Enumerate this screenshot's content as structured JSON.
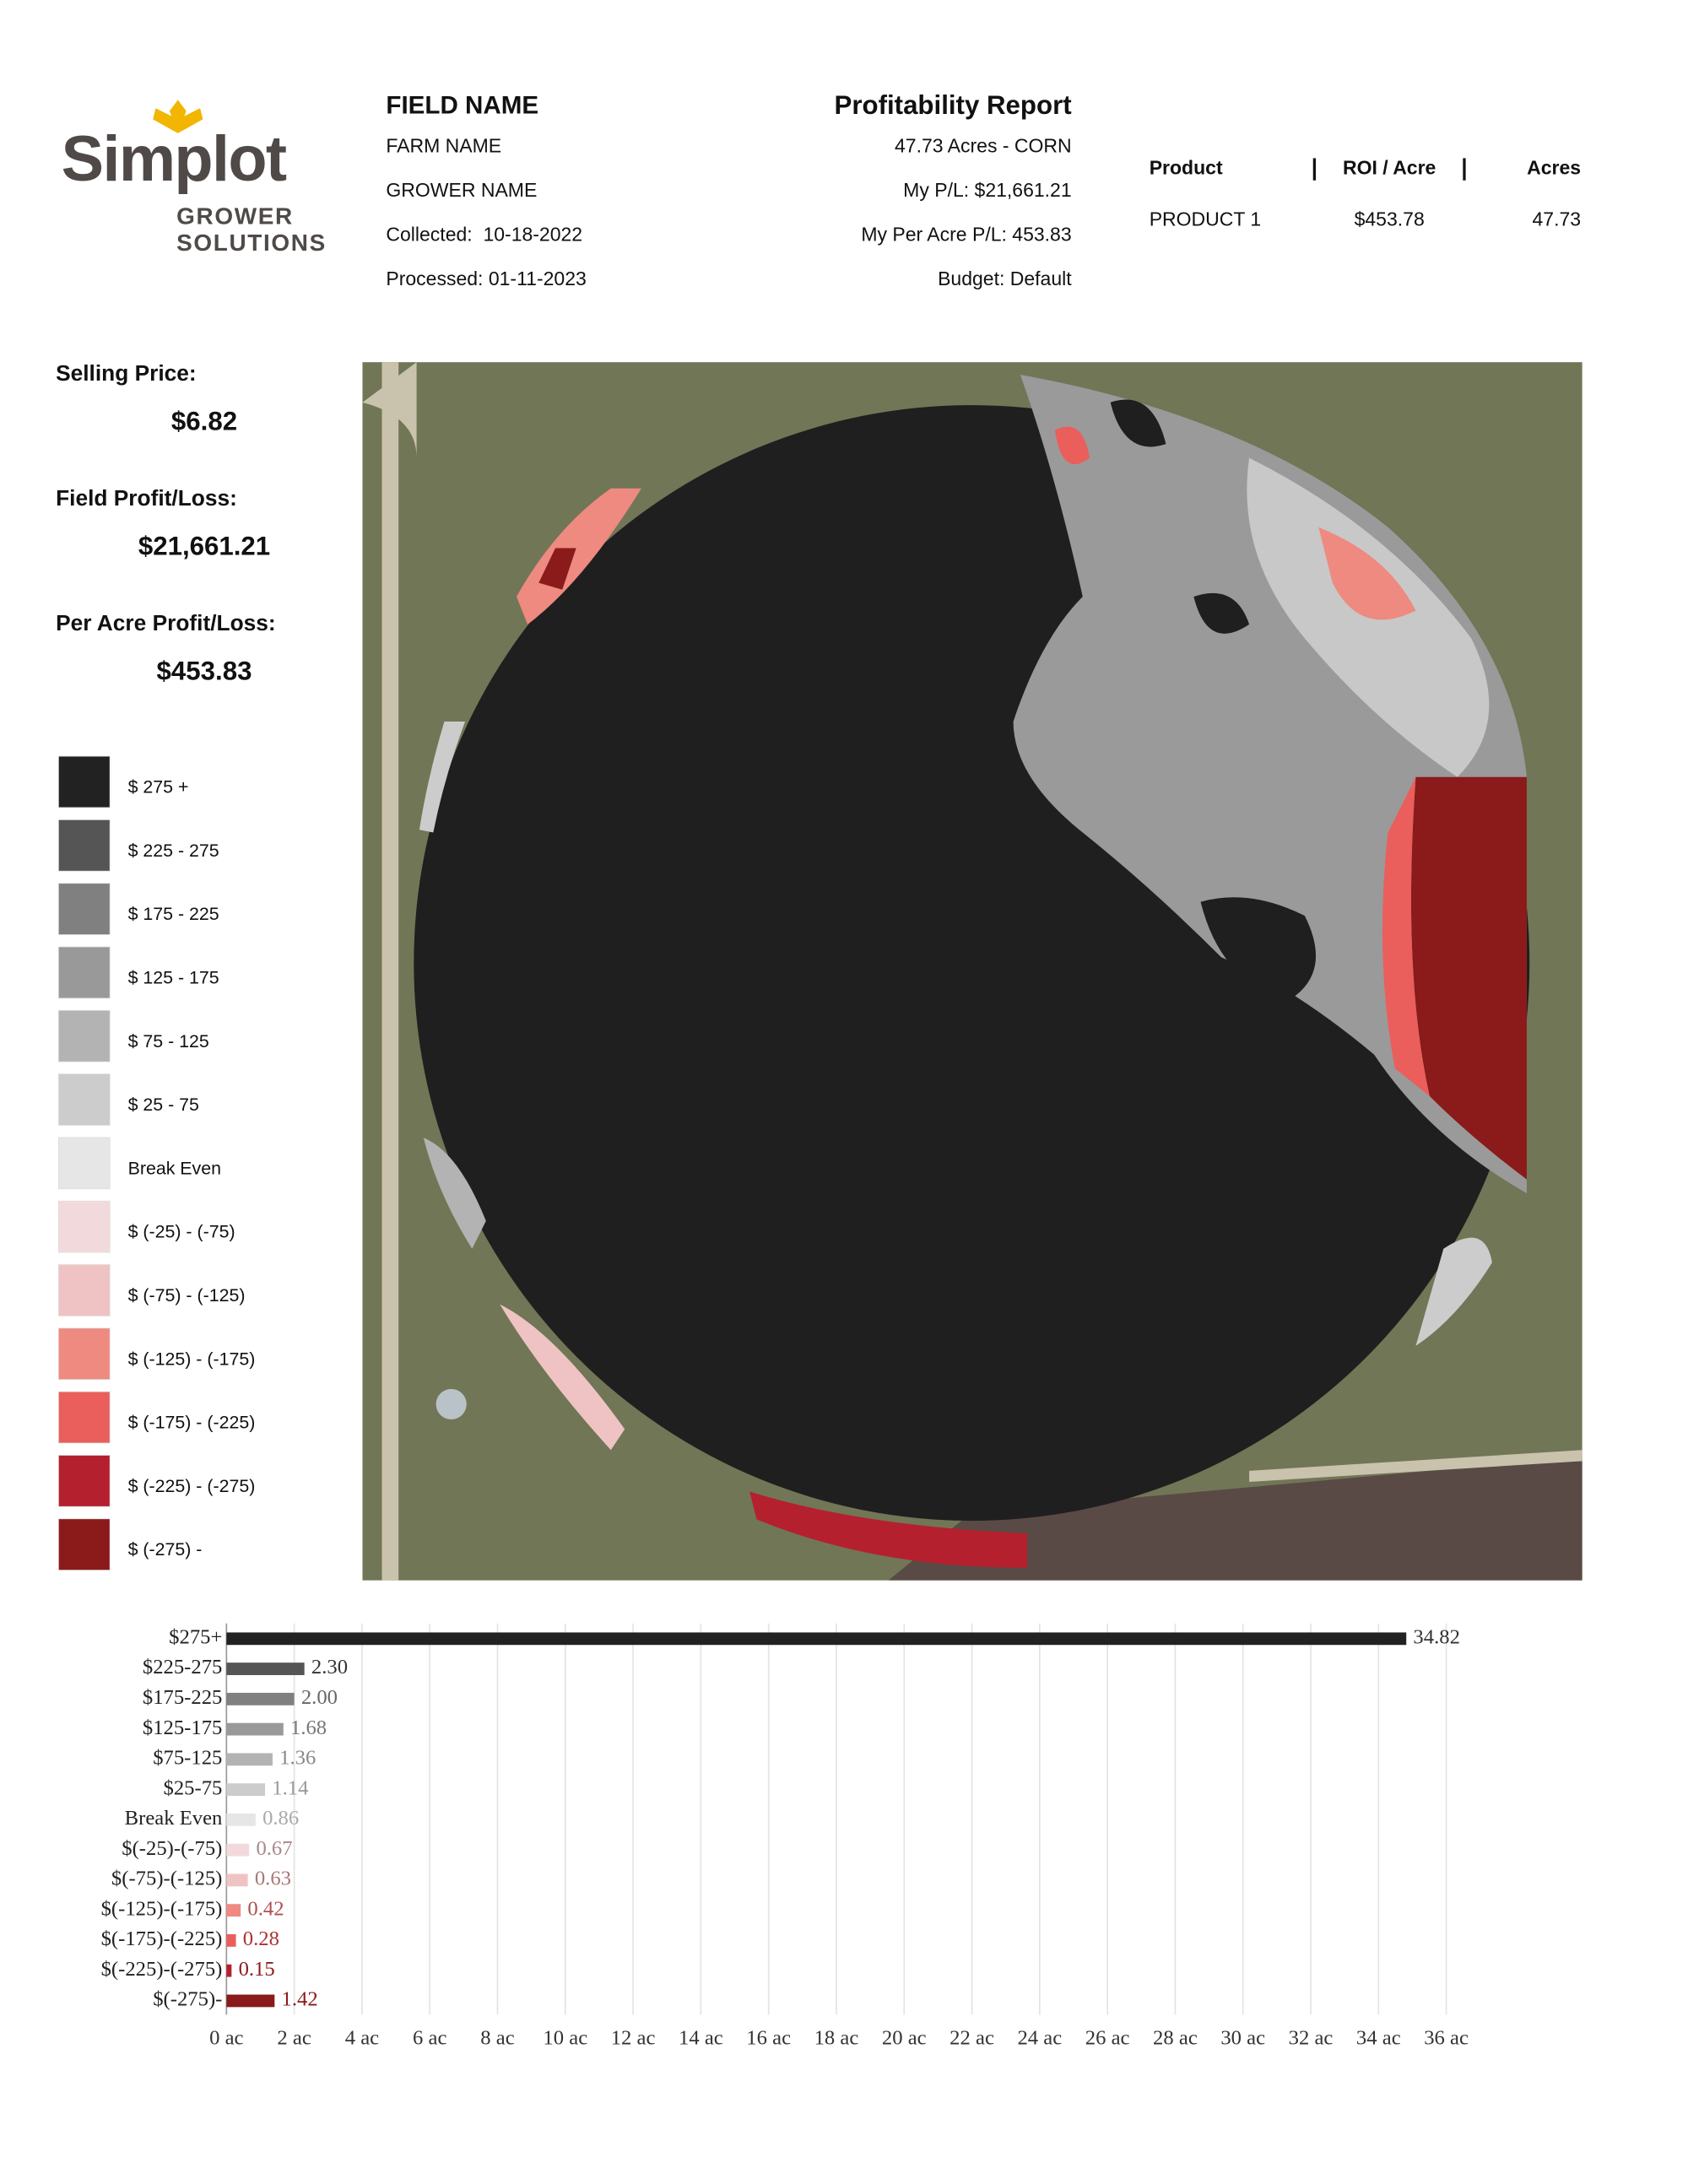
{
  "logo": {
    "brand": "Simplot",
    "tagline_1": "GROWER",
    "tagline_2": "SOLUTIONS"
  },
  "header": {
    "field_name": "FIELD NAME",
    "farm_name": "FARM NAME",
    "grower_name": "GROWER NAME",
    "collected": "Collected:  10-18-2022",
    "processed": "Processed: 01-11-2023",
    "report_title": "Profitability Report",
    "acres_crop": "47.73 Acres - CORN",
    "my_pl": "My P/L: $21,661.21",
    "my_per_acre_pl": "My Per Acre P/L: 453.83",
    "budget": "Budget: Default"
  },
  "product_table": {
    "columns": [
      "Product",
      "ROI / Acre",
      "Acres"
    ],
    "rows": [
      [
        "PRODUCT 1",
        "$453.78",
        "47.73"
      ]
    ]
  },
  "summary": [
    {
      "label": "Selling Price:",
      "value": "$6.82"
    },
    {
      "label": "Field Profit/Loss:",
      "value": "$21,661.21"
    },
    {
      "label": "Per Acre Profit/Loss:",
      "value": "$453.83"
    }
  ],
  "legend": [
    {
      "label": "$ 275 +",
      "color": "#222222"
    },
    {
      "label": "$ 225 - 275",
      "color": "#555555"
    },
    {
      "label": "$ 175 - 225",
      "color": "#808080"
    },
    {
      "label": "$ 125 - 175",
      "color": "#999999"
    },
    {
      "label": "$ 75 - 125",
      "color": "#b3b3b3"
    },
    {
      "label": "$ 25 - 75",
      "color": "#cccccc"
    },
    {
      "label": "Break Even",
      "color": "#e6e6e6"
    },
    {
      "label": "$ (-25) - (-75)",
      "color": "#f2dadc"
    },
    {
      "label": "$ (-75) - (-125)",
      "color": "#efc3c3"
    },
    {
      "label": "$ (-125) - (-175)",
      "color": "#ee8a80"
    },
    {
      "label": "$ (-175) - (-225)",
      "color": "#ea5e5c"
    },
    {
      "label": "$ (-225) - (-275)",
      "color": "#b5202e"
    },
    {
      "label": "$ (-275) -",
      "color": "#8b1a1a"
    }
  ],
  "chart_data": {
    "type": "hbar",
    "categories": [
      "$275+",
      "$225-275",
      "$175-225",
      "$125-175",
      "$75-125",
      "$25-75",
      "Break Even",
      "$(-25)-(-75)",
      "$(-75)-(-125)",
      "$(-125)-(-175)",
      "$(-175)-(-225)",
      "$(-225)-(-275)",
      "$(-275)-"
    ],
    "values": [
      34.82,
      2.3,
      2.0,
      1.68,
      1.36,
      1.14,
      0.86,
      0.67,
      0.63,
      0.42,
      0.28,
      0.15,
      1.42
    ],
    "value_labels": [
      "34.82",
      "2.30",
      "2.00",
      "1.68",
      "1.36",
      "1.14",
      "0.86",
      "0.67",
      "0.63",
      "0.42",
      "0.28",
      "0.15",
      "1.42"
    ],
    "colors": [
      "#222222",
      "#555555",
      "#808080",
      "#999999",
      "#b3b3b3",
      "#cccccc",
      "#e6e6e6",
      "#f2dadc",
      "#efc3c3",
      "#ee8a80",
      "#ea5e5c",
      "#b5202e",
      "#8b1a1a"
    ],
    "value_label_colors": [
      "#333333",
      "#333333",
      "#666666",
      "#777777",
      "#888888",
      "#999999",
      "#aaaaaa",
      "#aa8888",
      "#aa7777",
      "#b05050",
      "#b03030",
      "#8b1a1a",
      "#8b1a1a"
    ],
    "xlim": [
      0,
      36
    ],
    "xticks": [
      {
        "value": 0,
        "label": "0 ac"
      },
      {
        "value": 2,
        "label": "2 ac"
      },
      {
        "value": 4,
        "label": "4 ac"
      },
      {
        "value": 6,
        "label": "6 ac"
      },
      {
        "value": 8,
        "label": "8 ac"
      },
      {
        "value": 10,
        "label": "10 ac"
      },
      {
        "value": 12,
        "label": "12 ac"
      },
      {
        "value": 14,
        "label": "14 ac"
      },
      {
        "value": 16,
        "label": "16 ac"
      },
      {
        "value": 18,
        "label": "18 ac"
      },
      {
        "value": 20,
        "label": "20 ac"
      },
      {
        "value": 22,
        "label": "22 ac"
      },
      {
        "value": 24,
        "label": "24 ac"
      },
      {
        "value": 26,
        "label": "26 ac"
      },
      {
        "value": 28,
        "label": "28 ac"
      },
      {
        "value": 30,
        "label": "30 ac"
      },
      {
        "value": 32,
        "label": "32 ac"
      },
      {
        "value": 34,
        "label": "34 ac"
      },
      {
        "value": 36,
        "label": "36 ac"
      }
    ],
    "grid": true
  }
}
